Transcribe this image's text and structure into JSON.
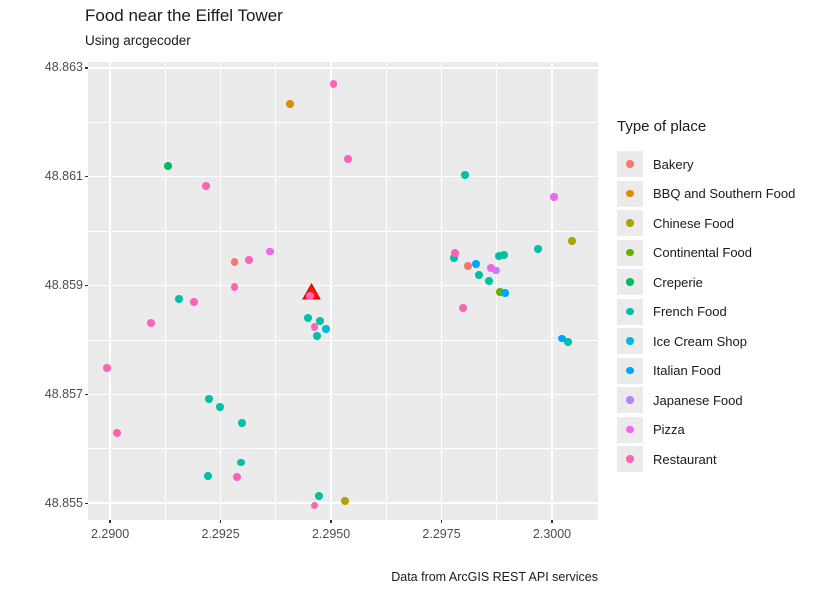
{
  "title": "Food near the Eiffel Tower",
  "subtitle": "Using arcgecoder",
  "caption": "Data from ArcGIS REST API services",
  "legend": {
    "title": "Type of place",
    "entries": [
      {
        "label": "Bakery",
        "color": "#F8766D"
      },
      {
        "label": "BBQ and Southern Food",
        "color": "#DB8E00"
      },
      {
        "label": "Chinese Food",
        "color": "#AEA200"
      },
      {
        "label": "Continental Food",
        "color": "#64B200"
      },
      {
        "label": "Creperie",
        "color": "#00BD5C"
      },
      {
        "label": "French Food",
        "color": "#00C1A7"
      },
      {
        "label": "Ice Cream Shop",
        "color": "#00BADE"
      },
      {
        "label": "Italian Food",
        "color": "#00A6FF"
      },
      {
        "label": "Japanese Food",
        "color": "#B385FF"
      },
      {
        "label": "Pizza",
        "color": "#EF67EB"
      },
      {
        "label": "Restaurant",
        "color": "#FF63B6"
      }
    ]
  },
  "chart_data": {
    "type": "scatter",
    "title": "Food near the Eiffel Tower",
    "subtitle": "Using arcgecoder",
    "caption": "Data from ArcGIS REST API services",
    "xlabel": "",
    "ylabel": "",
    "grid": true,
    "legend_position": "right",
    "panel_background": "#EBEBEB",
    "grid_color": "#FFFFFF",
    "x_axis": {
      "tick_labels": [
        "2.2900",
        "2.2925",
        "2.2950",
        "2.2975",
        "2.3000"
      ],
      "tick_values": [
        2.29,
        2.2925,
        2.295,
        2.2975,
        2.3
      ],
      "range": [
        2.2895,
        2.30104
      ]
    },
    "y_axis": {
      "tick_labels": [
        "48.855",
        "48.857",
        "48.859",
        "48.861",
        "48.863"
      ],
      "tick_values": [
        48.855,
        48.857,
        48.859,
        48.861,
        48.863
      ],
      "range": [
        48.85469,
        48.86311
      ]
    },
    "marker": {
      "label": "Eiffel Tower location",
      "shape": "triangle",
      "color": "#FF1400",
      "edge_color": "#D00000",
      "x": 2.29455,
      "y": 48.8589
    },
    "series": [
      {
        "name": "Bakery",
        "color": "#F8766D",
        "points": [
          [
            2.29281,
            48.85943
          ],
          [
            2.2981,
            48.85936
          ]
        ]
      },
      {
        "name": "BBQ and Southern Food",
        "color": "#DB8E00",
        "points": [
          [
            2.29407,
            48.86234
          ]
        ]
      },
      {
        "name": "Chinese Food",
        "color": "#AEA200",
        "points": [
          [
            2.30045,
            48.85982
          ],
          [
            2.29532,
            48.85504
          ]
        ]
      },
      {
        "name": "Continental Food",
        "color": "#64B200",
        "points": [
          [
            2.29882,
            48.85888
          ]
        ]
      },
      {
        "name": "Creperie",
        "color": "#00BD5C",
        "points": [
          [
            2.29131,
            48.8612
          ]
        ]
      },
      {
        "name": "French Food",
        "color": "#00C1A7",
        "points": [
          [
            2.29803,
            48.86103
          ],
          [
            2.29968,
            48.85967
          ],
          [
            2.29778,
            48.85951
          ],
          [
            2.2988,
            48.85954
          ],
          [
            2.29891,
            48.85956
          ],
          [
            2.29835,
            48.85919
          ],
          [
            2.29857,
            48.85908
          ],
          [
            2.29156,
            48.85875
          ],
          [
            2.29448,
            48.8584
          ],
          [
            2.29475,
            48.85835
          ],
          [
            2.29468,
            48.85807
          ],
          [
            2.29224,
            48.85691
          ],
          [
            2.29249,
            48.85677
          ],
          [
            2.29299,
            48.85647
          ],
          [
            2.29296,
            48.85575
          ],
          [
            2.29222,
            48.8555
          ],
          [
            2.30036,
            48.85796
          ],
          [
            2.29473,
            48.85513
          ]
        ]
      },
      {
        "name": "Ice Cream Shop",
        "color": "#00BADE",
        "points": [
          [
            2.29489,
            48.8582
          ]
        ]
      },
      {
        "name": "Italian Food",
        "color": "#00A6FF",
        "points": [
          [
            2.29828,
            48.8594
          ],
          [
            2.29894,
            48.85886
          ],
          [
            2.30023,
            48.85803
          ]
        ]
      },
      {
        "name": "Japanese Food",
        "color": "#B385FF",
        "points": [
          [
            2.30005,
            48.86063
          ],
          [
            2.29873,
            48.85928
          ],
          [
            2.29362,
            48.85963
          ]
        ]
      },
      {
        "name": "Pizza",
        "color": "#EF67EB",
        "points": [
          [
            2.30005,
            48.86063
          ],
          [
            2.29862,
            48.85932
          ],
          [
            2.29362,
            48.85963
          ]
        ]
      },
      {
        "name": "Restaurant",
        "color": "#FF63B6",
        "points": [
          [
            2.29505,
            48.86271
          ],
          [
            2.29538,
            48.86133
          ],
          [
            2.29217,
            48.86083
          ],
          [
            2.2978,
            48.8596
          ],
          [
            2.29799,
            48.85859
          ],
          [
            2.29314,
            48.85947
          ],
          [
            2.29281,
            48.85897
          ],
          [
            2.2919,
            48.8587
          ],
          [
            2.29093,
            48.85831
          ],
          [
            2.29452,
            48.85881
          ],
          [
            2.29462,
            48.85824
          ],
          [
            2.28993,
            48.85748
          ],
          [
            2.29016,
            48.85629
          ],
          [
            2.29287,
            48.85548
          ],
          [
            2.29462,
            48.85496
          ]
        ]
      }
    ]
  }
}
